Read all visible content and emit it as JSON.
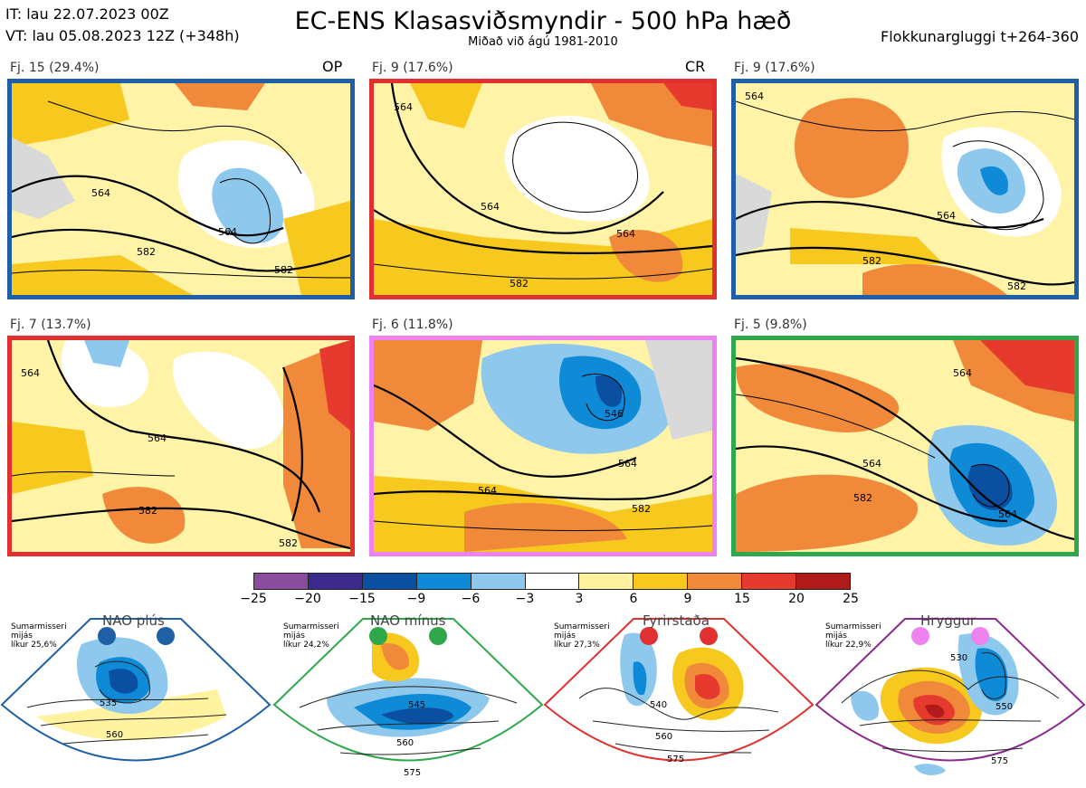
{
  "header": {
    "it": "IT: lau 22.07.2023 00Z",
    "vt": "VT: lau 05.08.2023 12Z  (+348h)",
    "title": "EC-ENS Klasasviðsmyndir - 500 hPa hæð",
    "subtitle": "Miðað við ágú 1981-2010",
    "window": "Flokkunargluggi t+264-360"
  },
  "panels": [
    {
      "label": "Fj. 15 (29.4%)",
      "tag": "OP",
      "frame_color": "#1f5fa6",
      "contours": [
        "564",
        "564",
        "582",
        "582"
      ]
    },
    {
      "label": "Fj. 9 (17.6%)",
      "tag": "CR",
      "frame_color": "#e03030",
      "contours": [
        "564",
        "564",
        "564",
        "582"
      ]
    },
    {
      "label": "Fj. 9 (17.6%)",
      "tag": "",
      "frame_color": "#1f5fa6",
      "contours": [
        "564",
        "564",
        "582",
        "582"
      ]
    },
    {
      "label": "Fj. 7 (13.7%)",
      "tag": "",
      "frame_color": "#e03030",
      "contours": [
        "564",
        "564",
        "582",
        "582"
      ]
    },
    {
      "label": "Fj. 6 (11.8%)",
      "tag": "",
      "frame_color": "#ee82ee",
      "contours": [
        "546",
        "564",
        "564",
        "582"
      ]
    },
    {
      "label": "Fj. 5 (9.8%)",
      "tag": "",
      "frame_color": "#2ea84a",
      "contours": [
        "564",
        "564",
        "582",
        "564"
      ]
    }
  ],
  "colorbar": {
    "ticks": [
      "−25",
      "−20",
      "−15",
      "−9",
      "−6",
      "−3",
      "3",
      "6",
      "9",
      "15",
      "20",
      "25"
    ],
    "colors": [
      "#8a4c9c",
      "#3b2a8c",
      "#0b4fa0",
      "#0f8ad6",
      "#8ec8ec",
      "#ffffff",
      "#fff3a0",
      "#f7c81d",
      "#f08a3a",
      "#e63a2e",
      "#b01a1a"
    ]
  },
  "regimes": [
    {
      "title": "NAO plús",
      "note": [
        "Sumarmisseri",
        "mijás",
        "líkur 25,6%"
      ],
      "color": "#1f5fa6",
      "dot_color": "#1f5fa6",
      "contours": [
        "535",
        "560"
      ]
    },
    {
      "title": "NAO mínus",
      "note": [
        "Sumarmisseri",
        "mijás",
        "líkur 24,2%"
      ],
      "color": "#2ea84a",
      "dot_color": "#2ea84a",
      "contours": [
        "545",
        "560",
        "575"
      ]
    },
    {
      "title": "Fyrirstaða",
      "note": [
        "Sumarmisseri",
        "mijás",
        "líkur 27,3%"
      ],
      "color": "#e03030",
      "dot_color": "#e03030",
      "contours": [
        "540",
        "560",
        "575"
      ]
    },
    {
      "title": "Hryggur",
      "note": [
        "Sumarmisseri",
        "mijás",
        "líkur 22,9%"
      ],
      "color": "#8a2a8c",
      "dot_color": "#ee82ee",
      "contours": [
        "530",
        "550",
        "575"
      ]
    }
  ]
}
